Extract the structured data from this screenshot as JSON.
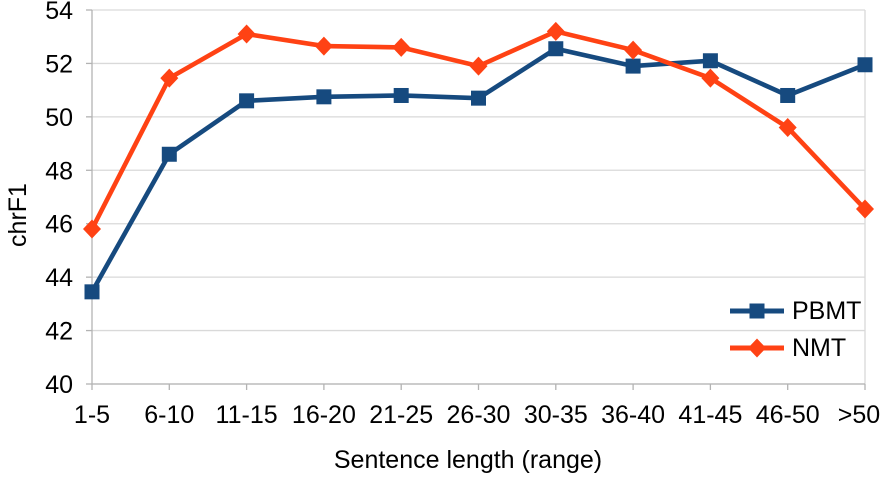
{
  "chart_data": {
    "type": "line",
    "title": "",
    "xlabel": "Sentence length (range)",
    "ylabel": "chrF1",
    "categories": [
      "1-5",
      "6-10",
      "11-15",
      "16-20",
      "21-25",
      "26-30",
      "30-35",
      "36-40",
      "41-45",
      "46-50",
      ">50"
    ],
    "series": [
      {
        "name": "PBMT",
        "marker": "square",
        "color": "#164A7F",
        "values": [
          43.45,
          48.6,
          50.6,
          50.75,
          50.8,
          50.7,
          52.55,
          51.9,
          52.1,
          50.8,
          51.95
        ]
      },
      {
        "name": "NMT",
        "marker": "diamond",
        "color": "#FF4214",
        "values": [
          45.8,
          51.45,
          53.1,
          52.65,
          52.6,
          51.9,
          53.2,
          52.5,
          51.45,
          49.6,
          46.55
        ]
      }
    ],
    "ylim": [
      40,
      54
    ],
    "ytick_step": 2,
    "grid": "horizontal",
    "legend_position": "inside-right",
    "colors": {
      "grid": "#D9D9D9",
      "axis": "#B3B3B3",
      "text": "#000000",
      "background": "#FFFFFF"
    }
  }
}
